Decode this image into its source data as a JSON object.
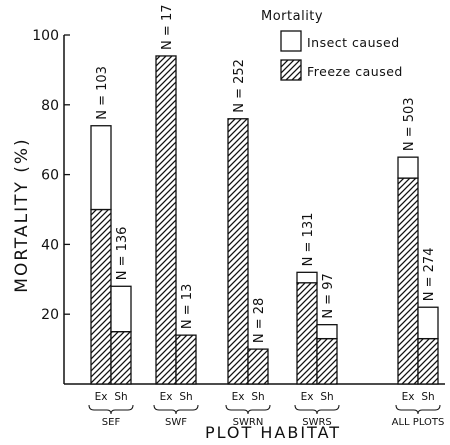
{
  "chart_data": {
    "type": "bar",
    "stacked": true,
    "xlabel": "PLOT HABITAT",
    "ylabel": "MORTALITY (%)",
    "ylim": [
      0,
      100
    ],
    "yticks": [
      20,
      40,
      60,
      80,
      100
    ],
    "legend": {
      "title": "Mortality",
      "position": "top-right",
      "entries": [
        "Insect caused",
        "Freeze caused"
      ]
    },
    "series": [
      {
        "name": "Freeze caused",
        "pattern": "hatched"
      },
      {
        "name": "Insect caused",
        "pattern": "white"
      }
    ],
    "groups": [
      {
        "label": "SEF",
        "bars": [
          {
            "label": "Ex",
            "freeze": 50,
            "insect": 24,
            "n_label": "N = 103"
          },
          {
            "label": "Sh",
            "freeze": 15,
            "insect": 13,
            "n_label": "N = 136"
          }
        ]
      },
      {
        "label": "SWF",
        "bars": [
          {
            "label": "Ex",
            "freeze": 94,
            "insect": 0,
            "n_label": "N = 17"
          },
          {
            "label": "Sh",
            "freeze": 14,
            "insect": 0,
            "n_label": "N = 13"
          }
        ]
      },
      {
        "label": "SWRN",
        "bars": [
          {
            "label": "Ex",
            "freeze": 76,
            "insect": 0,
            "n_label": "N = 252"
          },
          {
            "label": "Sh",
            "freeze": 10,
            "insect": 0,
            "n_label": "N = 28"
          }
        ]
      },
      {
        "label": "SWRS",
        "bars": [
          {
            "label": "Ex",
            "freeze": 29,
            "insect": 3,
            "n_label": "N = 131"
          },
          {
            "label": "Sh",
            "freeze": 13,
            "insect": 4,
            "n_label": "N = 97"
          }
        ]
      },
      {
        "label": "ALL PLOTS",
        "bars": [
          {
            "label": "Ex",
            "freeze": 59,
            "insect": 6,
            "n_label": "N = 503"
          },
          {
            "label": "Sh",
            "freeze": 13,
            "insect": 9,
            "n_label": "N = 274"
          }
        ]
      }
    ]
  }
}
